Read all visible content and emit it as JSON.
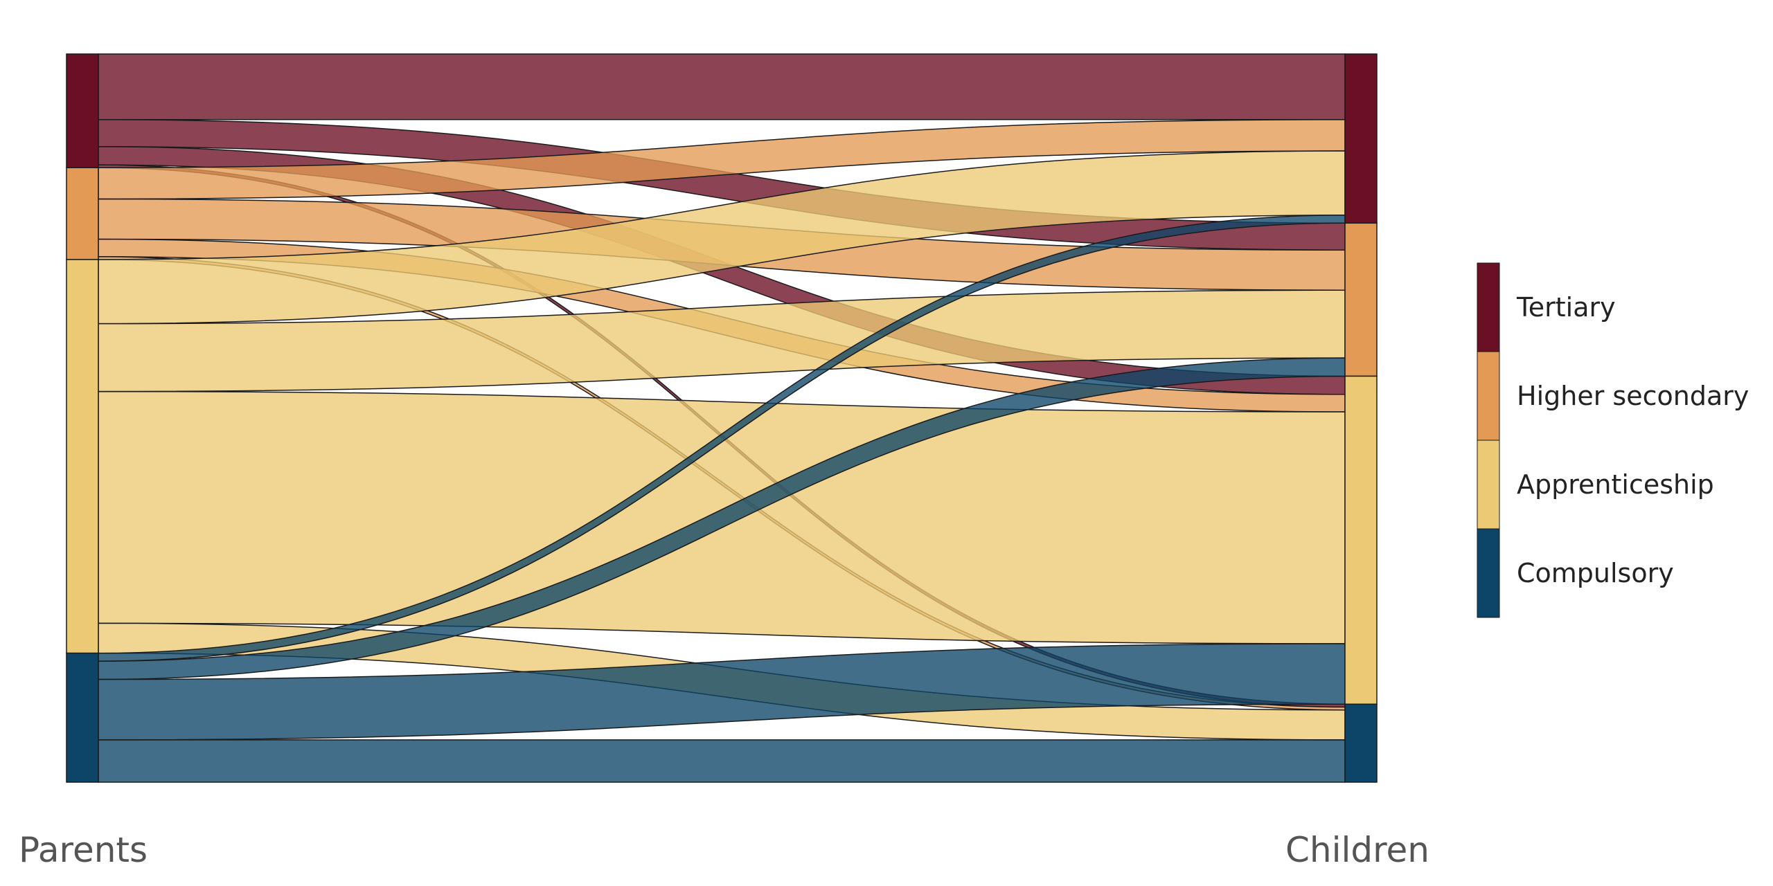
{
  "chart_data": {
    "type": "alluvial",
    "title": "",
    "axes": [
      {
        "name": "left",
        "label": "Parents"
      },
      {
        "name": "right",
        "label": "Children"
      }
    ],
    "categories": [
      {
        "name": "Tertiary",
        "color": "#6b0f25"
      },
      {
        "name": "Higher secondary",
        "color": "#e39a55"
      },
      {
        "name": "Apprenticeship",
        "color": "#ecc974"
      },
      {
        "name": "Compulsory",
        "color": "#0d4568"
      }
    ],
    "flows": [
      {
        "from": "Tertiary",
        "to": "Tertiary",
        "value": 90
      },
      {
        "from": "Tertiary",
        "to": "Higher secondary",
        "value": 37
      },
      {
        "from": "Tertiary",
        "to": "Apprenticeship",
        "value": 25
      },
      {
        "from": "Tertiary",
        "to": "Compulsory",
        "value": 4
      },
      {
        "from": "Higher secondary",
        "to": "Tertiary",
        "value": 43
      },
      {
        "from": "Higher secondary",
        "to": "Higher secondary",
        "value": 55
      },
      {
        "from": "Higher secondary",
        "to": "Apprenticeship",
        "value": 24
      },
      {
        "from": "Higher secondary",
        "to": "Compulsory",
        "value": 4
      },
      {
        "from": "Apprenticeship",
        "to": "Tertiary",
        "value": 88
      },
      {
        "from": "Apprenticeship",
        "to": "Higher secondary",
        "value": 93
      },
      {
        "from": "Apprenticeship",
        "to": "Apprenticeship",
        "value": 318
      },
      {
        "from": "Apprenticeship",
        "to": "Compulsory",
        "value": 41
      },
      {
        "from": "Compulsory",
        "to": "Tertiary",
        "value": 11
      },
      {
        "from": "Compulsory",
        "to": "Higher secondary",
        "value": 25
      },
      {
        "from": "Compulsory",
        "to": "Apprenticeship",
        "value": 83
      },
      {
        "from": "Compulsory",
        "to": "Compulsory",
        "value": 58
      }
    ],
    "legend_position": "right",
    "grid": false
  }
}
